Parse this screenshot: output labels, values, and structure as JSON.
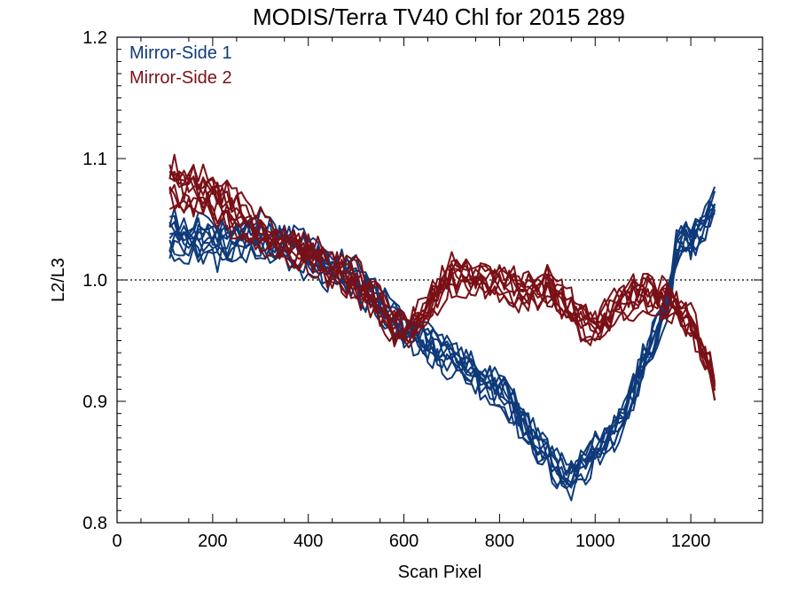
{
  "chart_data": {
    "type": "line",
    "title": "MODIS/Terra TV40 Chl for 2015 289",
    "xlabel": "Scan Pixel",
    "ylabel": "L2/L3",
    "xlim": [
      0,
      1350
    ],
    "ylim": [
      0.8,
      1.2
    ],
    "x_ticks": [
      0,
      200,
      400,
      600,
      800,
      1000,
      1200
    ],
    "y_ticks": [
      0.8,
      0.9,
      1.0,
      1.1,
      1.2
    ],
    "x_tick_labels": [
      "0",
      "200",
      "400",
      "600",
      "800",
      "1000",
      "1200"
    ],
    "y_tick_labels": [
      "0.8",
      "0.9",
      "1.0",
      "1.1",
      "1.2"
    ],
    "reference_line": {
      "y": 1.0,
      "style": "dotted"
    },
    "legend_position": "top-left",
    "grid": false,
    "series": [
      {
        "name": "Mirror-Side 1",
        "color": "#0e3a7a",
        "x": [
          110,
          200,
          300,
          400,
          500,
          600,
          700,
          800,
          850,
          900,
          950,
          1000,
          1050,
          1100,
          1150,
          1175,
          1200,
          1250
        ],
        "y": [
          1.035,
          1.03,
          1.035,
          1.02,
          1.0,
          0.96,
          0.935,
          0.91,
          0.88,
          0.855,
          0.835,
          0.86,
          0.88,
          0.93,
          0.975,
          1.035,
          1.03,
          1.06
        ]
      },
      {
        "name": "Mirror-Side 2",
        "color": "#7a1016",
        "x": [
          110,
          200,
          300,
          400,
          500,
          600,
          700,
          800,
          850,
          900,
          950,
          1000,
          1050,
          1100,
          1150,
          1200,
          1250
        ],
        "y": [
          1.08,
          1.07,
          1.04,
          1.02,
          1.0,
          0.955,
          1.005,
          1.0,
          0.99,
          0.995,
          0.975,
          0.96,
          0.98,
          0.99,
          0.985,
          0.965,
          0.915
        ]
      }
    ]
  }
}
